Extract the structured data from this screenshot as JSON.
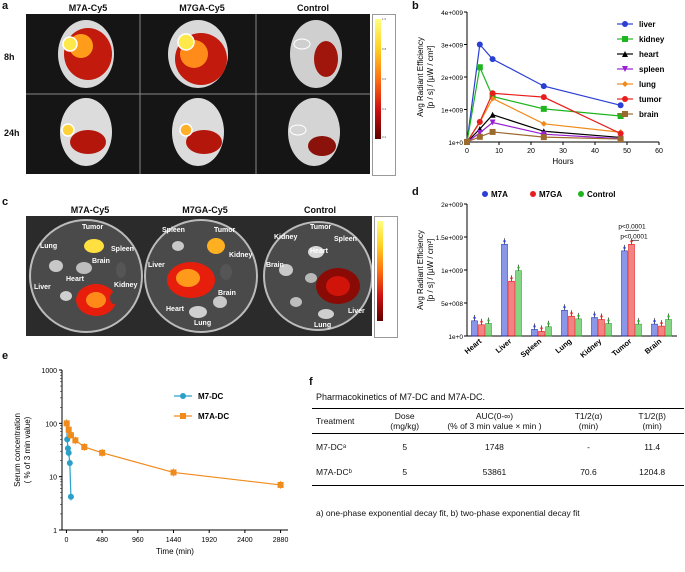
{
  "panels": {
    "a": "a",
    "b": "b",
    "c": "c",
    "d": "d",
    "e": "e",
    "f": "f"
  },
  "panel_a": {
    "columns": [
      "M7A-Cy5",
      "M7GA-Cy5",
      "Control"
    ],
    "rows": [
      "8h",
      "24h"
    ]
  },
  "panel_c": {
    "columns": [
      "M7A-Cy5",
      "M7GA-Cy5",
      "Control"
    ],
    "dish1": [
      "Lung",
      "Tumor",
      "Spleen",
      "Brain",
      "Liver",
      "Heart",
      "Kidney"
    ],
    "dish2": [
      "Spleen",
      "Tumor",
      "Kidney",
      "Liver",
      "Brain",
      "Heart",
      "Lung"
    ],
    "dish3": [
      "Kidney",
      "Tumor",
      "Spleen",
      "Brain",
      "Heart",
      "Liver",
      "Lung"
    ]
  },
  "chart_data": [
    {
      "id": "b",
      "type": "line",
      "xlabel": "Hours",
      "ylabel": "Avg Radiant Efficiency\n[p / s] / [µW / cm²]",
      "x": [
        0,
        4,
        8,
        24,
        48
      ],
      "xticks": [
        "0",
        "10",
        "20",
        "30",
        "40",
        "50",
        "60"
      ],
      "xlim": [
        0,
        60
      ],
      "yticks": [
        "1e+0",
        "1e+009",
        "2e+009",
        "3e+009",
        "4e+009"
      ],
      "ylim": [
        0,
        4000000000
      ],
      "series": [
        {
          "name": "liver",
          "color": "#2a3fd4",
          "marker": "circle",
          "values": [
            1000000,
            3000000000,
            2550000000,
            1720000000,
            1130000000
          ]
        },
        {
          "name": "kidney",
          "color": "#1fb51f",
          "marker": "square",
          "values": [
            1000000,
            2300000000,
            1400000000,
            1020000000,
            800000000
          ]
        },
        {
          "name": "heart",
          "color": "#000000",
          "marker": "triangle",
          "values": [
            1000000,
            400000000,
            840000000,
            330000000,
            140000000
          ]
        },
        {
          "name": "spleen",
          "color": "#9b1fd4",
          "marker": "tri-down",
          "values": [
            1000000,
            280000000,
            600000000,
            240000000,
            100000000
          ]
        },
        {
          "name": "lung",
          "color": "#f08a1a",
          "marker": "diamond",
          "values": [
            1000000,
            600000000,
            1340000000,
            560000000,
            300000000
          ]
        },
        {
          "name": "tumor",
          "color": "#e81e1e",
          "marker": "circle",
          "values": [
            1000000,
            620000000,
            1500000000,
            1380000000,
            260000000
          ]
        },
        {
          "name": "brain",
          "color": "#9c6a2e",
          "marker": "square",
          "values": [
            1000000,
            160000000,
            310000000,
            150000000,
            90000000
          ]
        }
      ]
    },
    {
      "id": "d",
      "type": "bar",
      "ylabel": "Avg Radiant Efficiency\n[p / s] / [µW / cm²]",
      "categories": [
        "Heart",
        "Liver",
        "Spleen",
        "Lung",
        "Kidney",
        "Tumor",
        "Brain"
      ],
      "yticks": [
        "1e+0",
        "5e+008",
        "1e+009",
        "1.5e+009",
        "2e+009"
      ],
      "ylim": [
        0,
        2000000000
      ],
      "series": [
        {
          "name": "M7A",
          "color": "#2a3fd4",
          "values": [
            230000000,
            1390000000,
            100000000,
            390000000,
            280000000,
            1290000000,
            180000000
          ]
        },
        {
          "name": "M7GA",
          "color": "#e81e1e",
          "values": [
            170000000,
            830000000,
            70000000,
            300000000,
            250000000,
            1390000000,
            150000000
          ]
        },
        {
          "name": "Control",
          "color": "#1fb51f",
          "values": [
            190000000,
            990000000,
            140000000,
            260000000,
            190000000,
            180000000,
            250000000
          ]
        }
      ],
      "annotations": [
        "p<0.0001",
        "p<0.0001"
      ]
    },
    {
      "id": "e",
      "type": "line",
      "xlabel": "Time (min)",
      "ylabel": "Serum concentration\n( % of 3 min value)",
      "xticks": [
        "0",
        "480",
        "960",
        "1440",
        "1920",
        "2400",
        "2880"
      ],
      "xlim": [
        -60,
        2980
      ],
      "yticks": [
        "1",
        "10",
        "100",
        "1000"
      ],
      "ylim": [
        1,
        1000
      ],
      "yscale": "log",
      "series": [
        {
          "name": "M7-DC",
          "color": "#2aa0c8",
          "marker": "circle",
          "x": [
            3,
            10,
            20,
            30,
            45,
            60
          ],
          "values": [
            100,
            50,
            34,
            28,
            18,
            4.2
          ]
        },
        {
          "name": "M7A-DC",
          "color": "#f08a1a",
          "marker": "square",
          "x": [
            3,
            30,
            60,
            120,
            240,
            480,
            1440,
            2880
          ],
          "values": [
            100,
            76,
            60,
            48,
            36,
            28,
            12,
            7
          ]
        }
      ]
    }
  ],
  "panel_f": {
    "title": "Pharmacokinetics of M7-DC and M7A-DC.",
    "headers": [
      [
        "Treatment"
      ],
      [
        "Dose",
        "(mg/kg)"
      ],
      [
        "AUC(0-∞)",
        "(% of 3 min value × min )"
      ],
      [
        "T1/2(α)",
        "(min)"
      ],
      [
        "T1/2(β)",
        "(min)"
      ]
    ],
    "rows": [
      [
        "M7-DCᵃ",
        "5",
        "1748",
        "-",
        "11.4"
      ],
      [
        "M7A-DCᵇ",
        "5",
        "53861",
        "70.6",
        "1204.8"
      ]
    ],
    "footnote": "a) one-phase exponential decay fit, b) two-phase exponential decay fit"
  },
  "colorbar": {
    "ticks": [
      "1.0",
      "0.8",
      "0.6",
      "0.4",
      "0.2"
    ]
  }
}
